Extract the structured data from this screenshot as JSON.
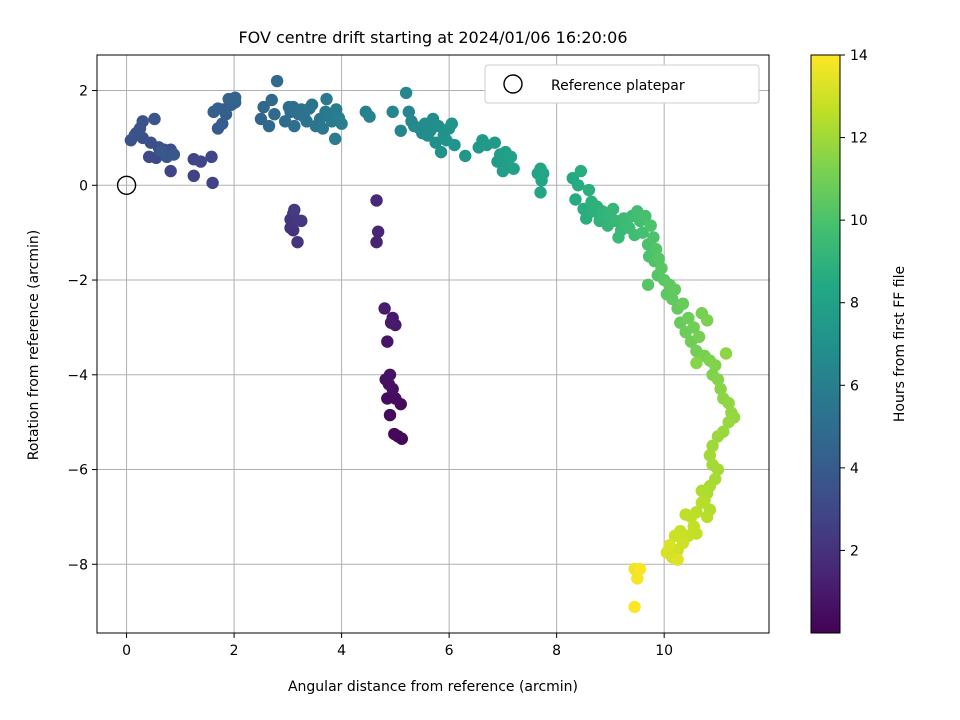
{
  "chart_data": {
    "type": "scatter",
    "title": "FOV centre drift starting at 2024/01/06 16:20:06",
    "xlabel": "Angular distance from reference (arcmin)",
    "ylabel": "Rotation from reference (arcmin)",
    "xlim": [
      -0.55,
      11.95
    ],
    "ylim": [
      -9.45,
      2.75
    ],
    "xticks": [
      0,
      2,
      4,
      6,
      8,
      10
    ],
    "yticks": [
      2,
      0,
      -2,
      -4,
      -6,
      -8
    ],
    "xtick_labels": [
      "0",
      "2",
      "4",
      "6",
      "8",
      "10"
    ],
    "ytick_labels": [
      "2",
      "0",
      "−2",
      "−4",
      "−6",
      "−8"
    ],
    "grid": true,
    "legend": {
      "position": "top-right",
      "entries": [
        "Reference platepar"
      ]
    },
    "reference_point": {
      "name": "Reference platepar",
      "x": 0,
      "y": 0
    },
    "colorbar": {
      "label": "Hours from first FF file",
      "range": [
        0,
        14
      ],
      "ticks": [
        2,
        4,
        6,
        8,
        10,
        12,
        14
      ],
      "tick_labels": [
        "2",
        "4",
        "6",
        "8",
        "10",
        "12",
        "14"
      ],
      "colormap": "viridis"
    },
    "points": [
      [
        5.05,
        -5.3,
        0.2
      ],
      [
        5.12,
        -5.35,
        0.25
      ],
      [
        4.98,
        -5.25,
        0.3
      ],
      [
        4.9,
        -4.85,
        0.35
      ],
      [
        5.1,
        -4.62,
        0.4
      ],
      [
        4.85,
        -4.5,
        0.45
      ],
      [
        5.0,
        -4.5,
        0.5
      ],
      [
        4.95,
        -4.3,
        0.55
      ],
      [
        4.88,
        -4.2,
        0.6
      ],
      [
        4.82,
        -4.1,
        0.65
      ],
      [
        4.9,
        -4.0,
        0.7
      ],
      [
        4.85,
        -3.3,
        0.8
      ],
      [
        4.95,
        -2.8,
        0.9
      ],
      [
        5.0,
        -2.95,
        0.95
      ],
      [
        4.92,
        -2.9,
        1.0
      ],
      [
        4.8,
        -2.6,
        1.1
      ],
      [
        4.65,
        -1.2,
        1.4
      ],
      [
        4.68,
        -0.98,
        1.5
      ],
      [
        4.65,
        -0.32,
        1.6
      ],
      [
        3.05,
        -0.9,
        2.0
      ],
      [
        3.1,
        -0.95,
        2.05
      ],
      [
        3.18,
        -1.2,
        2.1
      ],
      [
        3.05,
        -0.72,
        2.15
      ],
      [
        3.1,
        -0.6,
        2.2
      ],
      [
        3.15,
        -0.75,
        2.25
      ],
      [
        3.25,
        -0.75,
        2.3
      ],
      [
        3.12,
        -0.52,
        2.35
      ],
      [
        1.6,
        0.05,
        2.7
      ],
      [
        1.25,
        0.2,
        2.75
      ],
      [
        0.82,
        0.3,
        2.8
      ],
      [
        1.25,
        0.55,
        2.85
      ],
      [
        1.38,
        0.5,
        2.9
      ],
      [
        1.58,
        0.6,
        2.95
      ],
      [
        0.42,
        0.6,
        3.0
      ],
      [
        0.55,
        0.58,
        3.1
      ],
      [
        0.62,
        0.7,
        3.15
      ],
      [
        0.7,
        0.75,
        3.2
      ],
      [
        0.82,
        0.75,
        3.25
      ],
      [
        0.6,
        0.8,
        3.3
      ],
      [
        0.45,
        0.9,
        3.35
      ],
      [
        0.3,
        1.0,
        3.4
      ],
      [
        0.18,
        1.1,
        3.45
      ],
      [
        0.08,
        0.95,
        3.5
      ],
      [
        0.15,
        1.05,
        3.55
      ],
      [
        0.25,
        1.2,
        3.6
      ],
      [
        0.3,
        1.35,
        3.65
      ],
      [
        0.52,
        1.4,
        3.7
      ],
      [
        0.75,
        0.6,
        3.75
      ],
      [
        0.65,
        0.72,
        3.8
      ],
      [
        0.88,
        0.65,
        3.85
      ],
      [
        1.7,
        1.2,
        4.0
      ],
      [
        1.78,
        1.3,
        4.1
      ],
      [
        1.85,
        1.5,
        4.15
      ],
      [
        1.8,
        1.6,
        4.2
      ],
      [
        1.7,
        1.62,
        4.25
      ],
      [
        1.62,
        1.55,
        4.3
      ],
      [
        1.95,
        1.7,
        4.35
      ],
      [
        2.02,
        1.75,
        4.4
      ],
      [
        1.9,
        1.82,
        4.45
      ],
      [
        2.02,
        1.85,
        4.5
      ],
      [
        2.5,
        1.4,
        4.6
      ],
      [
        2.55,
        1.65,
        4.65
      ],
      [
        2.65,
        1.25,
        4.7
      ],
      [
        2.7,
        1.8,
        4.75
      ],
      [
        2.75,
        1.5,
        4.8
      ],
      [
        2.8,
        2.2,
        4.85
      ],
      [
        2.95,
        1.35,
        4.9
      ],
      [
        3.02,
        1.65,
        4.95
      ],
      [
        3.05,
        1.55,
        5.0
      ],
      [
        3.1,
        1.65,
        5.05
      ],
      [
        3.12,
        1.25,
        5.1
      ],
      [
        3.2,
        1.5,
        5.15
      ],
      [
        3.25,
        1.6,
        5.2
      ],
      [
        3.3,
        1.45,
        5.25
      ],
      [
        3.35,
        1.35,
        5.3
      ],
      [
        3.4,
        1.62,
        5.35
      ],
      [
        3.45,
        1.7,
        5.4
      ],
      [
        3.52,
        1.25,
        5.45
      ],
      [
        3.6,
        1.4,
        5.5
      ],
      [
        3.65,
        1.2,
        5.55
      ],
      [
        3.7,
        1.55,
        5.6
      ],
      [
        3.72,
        1.82,
        5.65
      ],
      [
        3.78,
        1.45,
        5.7
      ],
      [
        3.82,
        1.35,
        5.75
      ],
      [
        3.9,
        1.6,
        5.8
      ],
      [
        3.88,
        0.98,
        5.85
      ],
      [
        3.95,
        1.42,
        5.9
      ],
      [
        4.0,
        1.3,
        5.95
      ],
      [
        4.45,
        1.55,
        6.1
      ],
      [
        4.52,
        1.45,
        6.15
      ],
      [
        4.95,
        1.55,
        6.3
      ],
      [
        5.1,
        1.15,
        6.35
      ],
      [
        5.2,
        1.95,
        6.4
      ],
      [
        5.25,
        1.55,
        6.45
      ],
      [
        5.3,
        1.35,
        6.5
      ],
      [
        5.35,
        1.25,
        6.55
      ],
      [
        5.45,
        1.2,
        6.6
      ],
      [
        5.5,
        1.1,
        6.65
      ],
      [
        5.55,
        1.3,
        6.7
      ],
      [
        5.6,
        1.05,
        6.75
      ],
      [
        5.65,
        1.15,
        6.8
      ],
      [
        5.7,
        1.4,
        6.85
      ],
      [
        5.75,
        0.9,
        6.9
      ],
      [
        5.8,
        1.25,
        6.95
      ],
      [
        5.85,
        0.7,
        7.0
      ],
      [
        5.9,
        1.05,
        7.05
      ],
      [
        5.95,
        0.95,
        7.1
      ],
      [
        6.0,
        1.2,
        7.15
      ],
      [
        6.05,
        1.3,
        7.2
      ],
      [
        6.1,
        0.85,
        7.25
      ],
      [
        6.3,
        0.62,
        7.35
      ],
      [
        6.55,
        0.8,
        7.45
      ],
      [
        6.62,
        0.95,
        7.5
      ],
      [
        6.7,
        0.85,
        7.55
      ],
      [
        6.85,
        0.9,
        7.6
      ],
      [
        6.9,
        0.5,
        7.65
      ],
      [
        6.95,
        0.65,
        7.7
      ],
      [
        7.0,
        0.3,
        7.75
      ],
      [
        7.02,
        0.55,
        7.8
      ],
      [
        7.05,
        0.7,
        7.85
      ],
      [
        7.1,
        0.4,
        7.9
      ],
      [
        7.15,
        0.6,
        7.95
      ],
      [
        7.2,
        0.35,
        8.0
      ],
      [
        7.65,
        0.25,
        8.1
      ],
      [
        7.7,
        0.35,
        8.15
      ],
      [
        7.72,
        0.1,
        8.2
      ],
      [
        7.75,
        0.25,
        8.25
      ],
      [
        7.7,
        -0.15,
        8.3
      ],
      [
        8.3,
        0.15,
        8.5
      ],
      [
        8.35,
        -0.3,
        8.55
      ],
      [
        8.4,
        0.0,
        8.6
      ],
      [
        8.45,
        0.3,
        8.65
      ],
      [
        8.5,
        -0.5,
        8.7
      ],
      [
        8.55,
        -0.7,
        8.75
      ],
      [
        8.6,
        -0.1,
        8.8
      ],
      [
        8.65,
        -0.35,
        8.85
      ],
      [
        8.7,
        -0.55,
        8.9
      ],
      [
        8.75,
        -0.45,
        8.95
      ],
      [
        8.8,
        -0.75,
        9.0
      ],
      [
        8.85,
        -0.55,
        9.05
      ],
      [
        8.9,
        -0.6,
        9.1
      ],
      [
        8.95,
        -0.85,
        9.15
      ],
      [
        9.0,
        -0.65,
        9.2
      ],
      [
        9.05,
        -0.5,
        9.25
      ],
      [
        9.1,
        -0.75,
        9.3
      ],
      [
        9.15,
        -1.1,
        9.35
      ],
      [
        9.2,
        -0.95,
        9.4
      ],
      [
        9.25,
        -0.7,
        9.45
      ],
      [
        9.3,
        -0.8,
        9.5
      ],
      [
        9.35,
        -0.9,
        9.55
      ],
      [
        9.4,
        -0.65,
        9.6
      ],
      [
        9.45,
        -1.05,
        9.65
      ],
      [
        9.5,
        -0.55,
        9.7
      ],
      [
        9.55,
        -0.75,
        9.75
      ],
      [
        9.6,
        -1.0,
        9.8
      ],
      [
        9.65,
        -0.65,
        9.85
      ],
      [
        9.7,
        -1.25,
        9.9
      ],
      [
        9.72,
        -1.5,
        9.95
      ],
      [
        9.75,
        -0.85,
        10.0
      ],
      [
        9.8,
        -1.1,
        10.05
      ],
      [
        9.82,
        -1.6,
        10.1
      ],
      [
        9.85,
        -1.35,
        10.15
      ],
      [
        9.88,
        -1.9,
        10.2
      ],
      [
        9.9,
        -1.55,
        10.25
      ],
      [
        9.7,
        -2.1,
        10.3
      ],
      [
        9.95,
        -1.75,
        10.35
      ],
      [
        10.0,
        -2.0,
        10.4
      ],
      [
        10.05,
        -2.3,
        10.45
      ],
      [
        10.1,
        -2.1,
        10.5
      ],
      [
        10.15,
        -2.4,
        10.55
      ],
      [
        10.2,
        -2.2,
        10.6
      ],
      [
        10.25,
        -2.6,
        10.65
      ],
      [
        10.3,
        -2.9,
        10.7
      ],
      [
        10.35,
        -2.5,
        10.75
      ],
      [
        10.4,
        -3.1,
        10.8
      ],
      [
        10.45,
        -2.8,
        10.85
      ],
      [
        10.5,
        -3.3,
        10.9
      ],
      [
        10.55,
        -3.0,
        10.95
      ],
      [
        10.6,
        -3.5,
        11.0
      ],
      [
        10.65,
        -3.2,
        11.05
      ],
      [
        10.7,
        -2.7,
        11.1
      ],
      [
        10.75,
        -3.6,
        11.15
      ],
      [
        10.8,
        -2.85,
        11.2
      ],
      [
        10.85,
        -3.7,
        11.25
      ],
      [
        10.9,
        -4.0,
        11.3
      ],
      [
        10.95,
        -3.8,
        11.35
      ],
      [
        11.0,
        -4.1,
        11.4
      ],
      [
        10.6,
        -3.75,
        11.45
      ],
      [
        11.05,
        -4.3,
        11.5
      ],
      [
        11.1,
        -4.5,
        11.55
      ],
      [
        11.15,
        -3.55,
        11.6
      ],
      [
        11.2,
        -4.6,
        11.65
      ],
      [
        11.25,
        -4.8,
        11.7
      ],
      [
        11.3,
        -4.9,
        11.75
      ],
      [
        11.2,
        -5.0,
        11.8
      ],
      [
        11.1,
        -5.2,
        11.85
      ],
      [
        11.0,
        -5.3,
        11.9
      ],
      [
        10.9,
        -5.5,
        11.95
      ],
      [
        10.85,
        -5.7,
        12.0
      ],
      [
        10.9,
        -5.9,
        12.05
      ],
      [
        11.0,
        -6.0,
        12.1
      ],
      [
        10.95,
        -6.2,
        12.15
      ],
      [
        10.85,
        -6.35,
        12.2
      ],
      [
        10.8,
        -6.5,
        12.25
      ],
      [
        10.7,
        -6.45,
        12.3
      ],
      [
        10.75,
        -6.65,
        12.35
      ],
      [
        10.85,
        -6.85,
        12.4
      ],
      [
        10.8,
        -7.0,
        12.45
      ],
      [
        10.7,
        -6.7,
        12.5
      ],
      [
        10.6,
        -6.9,
        12.55
      ],
      [
        10.5,
        -7.0,
        12.6
      ],
      [
        10.4,
        -6.95,
        12.65
      ],
      [
        10.55,
        -7.2,
        12.7
      ],
      [
        10.6,
        -7.35,
        12.75
      ],
      [
        10.45,
        -7.4,
        12.8
      ],
      [
        10.3,
        -7.3,
        12.85
      ],
      [
        10.2,
        -7.4,
        12.9
      ],
      [
        10.35,
        -7.55,
        12.95
      ],
      [
        10.25,
        -7.7,
        13.0
      ],
      [
        10.15,
        -7.85,
        13.1
      ],
      [
        10.05,
        -7.75,
        13.15
      ],
      [
        10.1,
        -7.6,
        13.2
      ],
      [
        10.25,
        -7.9,
        13.3
      ],
      [
        9.45,
        -8.1,
        13.7
      ],
      [
        9.5,
        -8.3,
        13.8
      ],
      [
        9.55,
        -8.1,
        13.85
      ],
      [
        9.45,
        -8.9,
        13.95
      ]
    ]
  }
}
